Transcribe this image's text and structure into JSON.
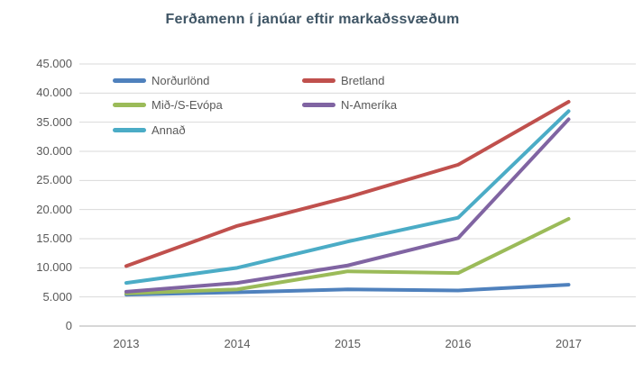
{
  "chart_data": {
    "type": "line",
    "title": "Ferðamenn í janúar eftir markaðssvæðum",
    "categories": [
      "2013",
      "2014",
      "2015",
      "2016",
      "2017"
    ],
    "series": [
      {
        "name": "Norðurlönd",
        "color": "#4F81BD",
        "values": [
          5400,
          5800,
          6300,
          6100,
          7100
        ]
      },
      {
        "name": "Bretland",
        "color": "#C0504D",
        "values": [
          10300,
          17200,
          22100,
          27700,
          38500
        ]
      },
      {
        "name": "Mið-/S-Evópa",
        "color": "#9BBB59",
        "values": [
          5600,
          6300,
          9400,
          9100,
          18400
        ]
      },
      {
        "name": "N-Ameríka",
        "color": "#8064A2",
        "values": [
          5900,
          7400,
          10400,
          15100,
          35500
        ]
      },
      {
        "name": "Annað",
        "color": "#4BACC6",
        "values": [
          7400,
          10000,
          14500,
          18600,
          36900
        ]
      }
    ],
    "ylim": [
      0,
      45000
    ],
    "ytick_step": 5000,
    "ytick_labels": [
      "0",
      "5.000",
      "10.000",
      "15.000",
      "20.000",
      "25.000",
      "30.000",
      "35.000",
      "40.000",
      "45.000"
    ],
    "grid": true,
    "legend_position": "inside-top-left",
    "xlabel": "",
    "ylabel": ""
  },
  "style": {
    "title_color": "#3F5565",
    "axis_text_color": "#595959",
    "gridline_color": "#D9D9D9",
    "axis_line_color": "#BFBFBF",
    "background": "#FFFFFF"
  }
}
